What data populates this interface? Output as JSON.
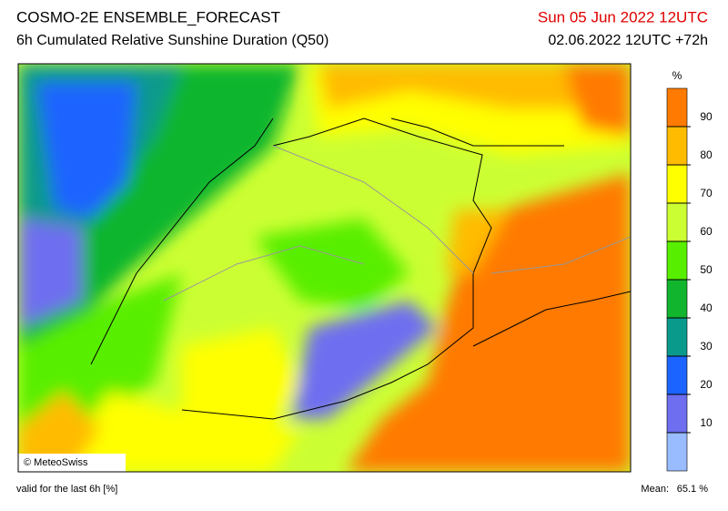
{
  "header": {
    "title": "COSMO-2E ENSEMBLE_FORECAST",
    "subtitle": "6h Cumulated Relative Sunshine Duration (Q50)",
    "valid_date": "Sun 05 Jun 2022 12UTC",
    "run": "02.06.2022 12UTC +72h"
  },
  "map": {
    "credit": "© MeteoSwiss"
  },
  "colorbar": {
    "unit": "%",
    "ticks": [
      10,
      20,
      30,
      40,
      50,
      60,
      70,
      80,
      90
    ],
    "colors": [
      "#99bbff",
      "#6e6ef0",
      "#1c64ff",
      "#0a9a8c",
      "#11b52e",
      "#58ee00",
      "#ccff33",
      "#ffff00",
      "#ffbb00",
      "#ff7a00"
    ]
  },
  "footer": {
    "note": "valid for the last 6h [%]",
    "mean_label": "Mean:",
    "mean": "65.1 %"
  }
}
